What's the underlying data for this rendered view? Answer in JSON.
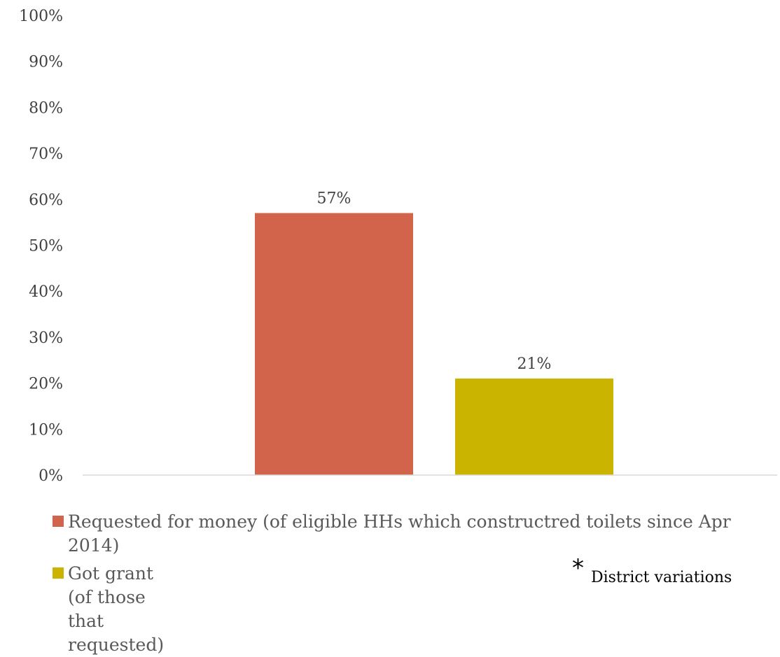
{
  "chart_data": {
    "type": "bar",
    "categories": [
      ""
    ],
    "series": [
      {
        "name": "Requested for money (of eligible HHs which constructred toilets since Apr 2014)",
        "values": [
          57
        ],
        "value_label": "57%",
        "color": "#D2644B"
      },
      {
        "name": "Got grant (of those that requested)",
        "values": [
          21
        ],
        "value_label": "21%",
        "color": "#CBB400"
      }
    ],
    "ylim": [
      0,
      100
    ],
    "yticks": [
      "0%",
      "10%",
      "20%",
      "30%",
      "40%",
      "50%",
      "60%",
      "70%",
      "80%",
      "90%",
      "100%"
    ],
    "grid": false,
    "legend_placement": "bottom",
    "title": "",
    "xlabel": "",
    "ylabel": ""
  },
  "note": {
    "symbol": "*",
    "text": "District variations"
  }
}
